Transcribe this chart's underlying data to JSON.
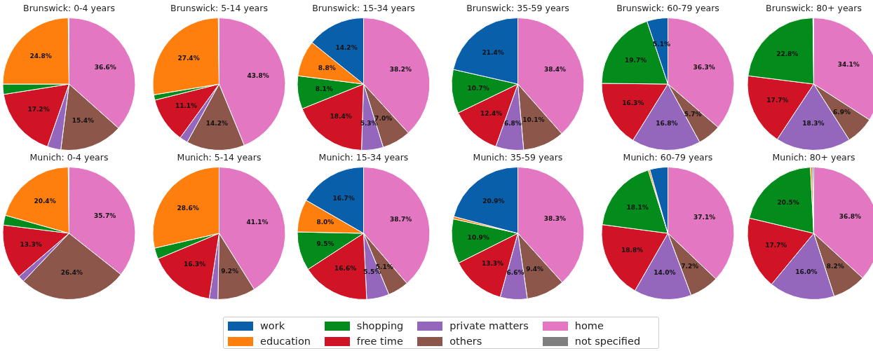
{
  "chart_data": [
    {
      "type": "pie",
      "title": "Brunswick: 0-4 years",
      "legend": "bottom",
      "categories": [
        "work",
        "education",
        "shopping",
        "free time",
        "private matters",
        "others",
        "home",
        "not specified"
      ],
      "colors": [
        "#0a5fab",
        "#ff7f0e",
        "#038b1c",
        "#d01426",
        "#9467bd",
        "#8c564b",
        "#e377c2",
        "#7f7f7f"
      ],
      "values": [
        0.2,
        24.8,
        2.5,
        17.2,
        3.3,
        15.4,
        36.6,
        0
      ],
      "value_labels": [
        null,
        "24.8%",
        null,
        "17.2%",
        null,
        "15.4%",
        "36.6%",
        null
      ]
    },
    {
      "type": "pie",
      "title": "Brunswick: 5-14 years",
      "categories": [
        null,
        null,
        null,
        null,
        null,
        null,
        null,
        null
      ],
      "colors": [
        "#0a5fab",
        "#ff7f0e",
        "#038b1c",
        "#d01426",
        "#9467bd",
        "#8c564b",
        "#e377c2",
        "#7f7f7f"
      ],
      "values": [
        0.2,
        27.4,
        1.3,
        11.1,
        2.0,
        14.2,
        43.8,
        0
      ],
      "value_labels": [
        null,
        "27.4%",
        null,
        "11.1%",
        null,
        "14.2%",
        "43.8%",
        null
      ]
    },
    {
      "type": "pie",
      "title": "Brunswick: 15-34 years",
      "categories": [
        null,
        null,
        null,
        null,
        null,
        null,
        null,
        null
      ],
      "colors": [
        "#0a5fab",
        "#ff7f0e",
        "#038b1c",
        "#d01426",
        "#9467bd",
        "#8c564b",
        "#e377c2",
        "#7f7f7f"
      ],
      "values": [
        14.2,
        8.8,
        8.1,
        18.4,
        5.3,
        7.0,
        38.2,
        0
      ],
      "value_labels": [
        "14.2%",
        "8.8%",
        "8.1%",
        "18.4%",
        "5.3%",
        "7.0%",
        "38.2%",
        null
      ]
    },
    {
      "type": "pie",
      "title": "Brunswick: 35-59 years",
      "categories": [
        null,
        null,
        null,
        null,
        null,
        null,
        null,
        null
      ],
      "colors": [
        "#0a5fab",
        "#ff7f0e",
        "#038b1c",
        "#d01426",
        "#9467bd",
        "#8c564b",
        "#e377c2",
        "#7f7f7f"
      ],
      "values": [
        21.4,
        null,
        10.7,
        12.4,
        6.8,
        10.1,
        38.4,
        0
      ],
      "value_labels": [
        "21.4%",
        null,
        "10.7%",
        "12.4%",
        "6.8%",
        "10.1%",
        "38.4%",
        null
      ]
    },
    {
      "type": "pie",
      "title": "Brunswick: 60-79 years",
      "categories": [
        null,
        null,
        null,
        null,
        null,
        null,
        null,
        null
      ],
      "colors": [
        "#0a5fab",
        "#ff7f0e",
        "#038b1c",
        "#d01426",
        "#9467bd",
        "#8c564b",
        "#e377c2",
        "#7f7f7f"
      ],
      "values": [
        5.1,
        null,
        19.7,
        16.3,
        16.8,
        5.7,
        36.3,
        0
      ],
      "value_labels": [
        "5.1%",
        null,
        "19.7%",
        "16.3%",
        "16.8%",
        "5.7%",
        "36.3%",
        null
      ]
    },
    {
      "type": "pie",
      "title": "Brunswick: 80+ years",
      "categories": [
        null,
        null,
        null,
        null,
        null,
        null,
        null,
        null
      ],
      "colors": [
        "#0a5fab",
        "#ff7f0e",
        "#038b1c",
        "#d01426",
        "#9467bd",
        "#8c564b",
        "#e377c2",
        "#7f7f7f"
      ],
      "values": [
        0.2,
        0,
        22.8,
        17.7,
        18.3,
        6.9,
        34.1,
        0
      ],
      "value_labels": [
        null,
        null,
        "22.8%",
        "17.7%",
        "18.3%",
        "6.9%",
        "34.1%",
        null
      ]
    },
    {
      "type": "pie",
      "title": "Munich: 0-4 years",
      "categories": [
        null,
        null,
        null,
        null,
        null,
        null,
        null,
        null
      ],
      "colors": [
        "#0a5fab",
        "#ff7f0e",
        "#038b1c",
        "#d01426",
        "#9467bd",
        "#8c564b",
        "#e377c2",
        "#7f7f7f"
      ],
      "values": [
        0.2,
        20.4,
        2.4,
        13.3,
        1.6,
        26.4,
        35.7,
        0
      ],
      "value_labels": [
        null,
        "20.4%",
        null,
        "13.3%",
        null,
        "26.4%",
        "35.7%",
        null
      ]
    },
    {
      "type": "pie",
      "title": "Munich: 5-14 years",
      "categories": [
        null,
        null,
        null,
        null,
        null,
        null,
        null,
        null
      ],
      "colors": [
        "#0a5fab",
        "#ff7f0e",
        "#038b1c",
        "#d01426",
        "#9467bd",
        "#8c564b",
        "#e377c2",
        "#7f7f7f"
      ],
      "values": [
        0,
        28.6,
        2.7,
        16.3,
        2.1,
        9.2,
        41.1,
        0
      ],
      "value_labels": [
        null,
        "28.6%",
        null,
        "16.3%",
        null,
        "9.2%",
        "41.1%",
        null
      ]
    },
    {
      "type": "pie",
      "title": "Munich: 15-34 years",
      "categories": [
        null,
        null,
        null,
        null,
        null,
        null,
        null,
        null
      ],
      "colors": [
        "#0a5fab",
        "#ff7f0e",
        "#038b1c",
        "#d01426",
        "#9467bd",
        "#8c564b",
        "#e377c2",
        "#7f7f7f"
      ],
      "values": [
        16.7,
        8.0,
        9.5,
        16.6,
        5.5,
        5.1,
        38.7,
        0
      ],
      "value_labels": [
        "16.7%",
        "8.0%",
        "9.5%",
        "16.6%",
        "5.5%",
        "5.1%",
        "38.7%",
        null
      ]
    },
    {
      "type": "pie",
      "title": "Munich: 35-59 years",
      "categories": [
        null,
        null,
        null,
        null,
        null,
        null,
        null,
        null
      ],
      "colors": [
        "#0a5fab",
        "#ff7f0e",
        "#038b1c",
        "#d01426",
        "#9467bd",
        "#8c564b",
        "#e377c2",
        "#7f7f7f"
      ],
      "values": [
        20.9,
        0.6,
        10.9,
        13.3,
        6.6,
        9.4,
        38.3,
        0
      ],
      "value_labels": [
        "20.9%",
        null,
        "10.9%",
        "13.3%",
        "6.6%",
        "9.4%",
        "38.3%",
        null
      ]
    },
    {
      "type": "pie",
      "title": "Munich: 60-79 years",
      "categories": [
        null,
        null,
        null,
        null,
        null,
        null,
        null,
        null
      ],
      "colors": [
        "#0a5fab",
        "#ff7f0e",
        "#038b1c",
        "#d01426",
        "#9467bd",
        "#8c564b",
        "#e377c2",
        "#7f7f7f"
      ],
      "values": [
        4.4,
        0.4,
        18.1,
        18.8,
        14.0,
        7.2,
        37.1,
        0
      ],
      "value_labels": [
        null,
        null,
        "18.1%",
        "18.8%",
        "14.0%",
        "7.2%",
        "37.1%",
        null
      ]
    },
    {
      "type": "pie",
      "title": "Munich: 80+ years",
      "categories": [
        null,
        null,
        null,
        null,
        null,
        null,
        null,
        null
      ],
      "colors": [
        "#0a5fab",
        "#ff7f0e",
        "#038b1c",
        "#d01426",
        "#9467bd",
        "#8c564b",
        "#e377c2",
        "#7f7f7f"
      ],
      "values": [
        0.3,
        0.5,
        20.5,
        17.7,
        16.0,
        8.2,
        36.8,
        0
      ],
      "value_labels": [
        null,
        null,
        "20.5%",
        "17.7%",
        "16.0%",
        "8.2%",
        "36.8%",
        null
      ]
    }
  ]
}
